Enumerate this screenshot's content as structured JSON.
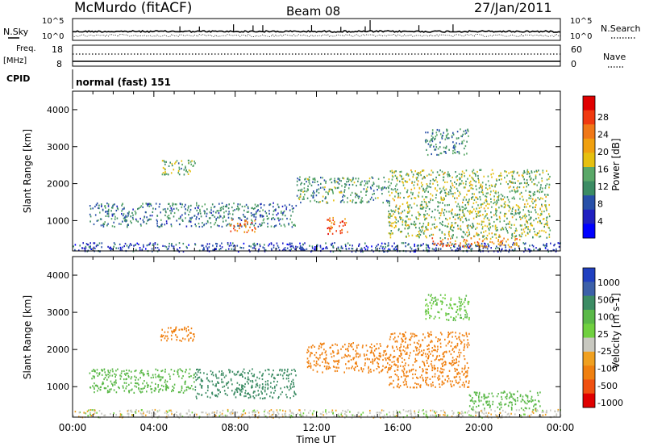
{
  "header": {
    "station": "McMurdo (fitACF)",
    "beam": "Beam 08",
    "date": "27/Jan/2011"
  },
  "nsky_panel": {
    "left_label": "N.Sky",
    "right_label": "N.Search",
    "tick_top_left": "10^5",
    "tick_bottom_left": "10^0",
    "tick_top_right": "10^5",
    "tick_bottom_right": "10^0"
  },
  "freq_panel": {
    "left_label_1": "Freq.",
    "left_label_2": "[MHz]",
    "right_label": "Nave",
    "left_ticks": [
      "18",
      "8"
    ],
    "right_ticks": [
      "60",
      "0"
    ]
  },
  "cpid_panel": {
    "label": "CPID",
    "mode": "normal (fast) 151"
  },
  "power_panel": {
    "ylabel": "Slant Range [km]",
    "yticks": [
      "1000",
      "2000",
      "3000",
      "4000"
    ],
    "colorbar_label": "Power [dB]",
    "colorbar_ticks": [
      "28",
      "24",
      "20",
      "16",
      "12",
      "8",
      "4"
    ],
    "colorbar_colors": [
      "#e00000",
      "#f03a10",
      "#f07818",
      "#f0a010",
      "#e6c010",
      "#5aa868",
      "#3c8c64",
      "#2850a8",
      "#2020c0",
      "#0000ff"
    ]
  },
  "velocity_panel": {
    "ylabel": "Slant Range [km]",
    "yticks": [
      "1000",
      "2000",
      "3000",
      "4000"
    ],
    "colorbar_label": "Velocity [m s-1]",
    "colorbar_ticks": [
      "1000",
      "500",
      "100",
      "25",
      "-25",
      "-100",
      "-500",
      "-1000"
    ],
    "colorbar_colors": [
      "#2040c0",
      "#3c60a8",
      "#3c8c64",
      "#5ab848",
      "#70d040",
      "#c8c8c0",
      "#f0a020",
      "#f08010",
      "#f05010",
      "#e00000"
    ]
  },
  "xaxis": {
    "label": "Time UT",
    "ticks": [
      "00:00",
      "04:00",
      "08:00",
      "12:00",
      "16:00",
      "20:00",
      "00:00"
    ]
  },
  "chart_data": [
    {
      "type": "heatmap",
      "name": "",
      "x_range_hours": [
        0,
        24
      ],
      "y_range_km": [
        180,
        4500
      ],
      "color_range_db": [
        0,
        30
      ],
      "echo_regions": [
        {
          "t0": 0.8,
          "t1": 11.0,
          "r0": 850,
          "r1": 1500,
          "level": 9
        },
        {
          "t0": 4.3,
          "t1": 6.0,
          "r0": 2250,
          "r1": 2650,
          "level": 13
        },
        {
          "t0": 7.7,
          "t1": 9.0,
          "r0": 700,
          "r1": 1050,
          "level": 24
        },
        {
          "t0": 12.5,
          "t1": 13.6,
          "r0": 650,
          "r1": 1100,
          "level": 25
        },
        {
          "t0": 11.0,
          "t1": 15.5,
          "r0": 1500,
          "r1": 2200,
          "level": 11
        },
        {
          "t0": 15.5,
          "t1": 23.5,
          "r0": 550,
          "r1": 2400,
          "level": 14
        },
        {
          "t0": 17.3,
          "t1": 19.5,
          "r0": 2800,
          "r1": 3500,
          "level": 10
        },
        {
          "t0": 0.0,
          "t1": 24.0,
          "r0": 180,
          "r1": 420,
          "level": 6
        },
        {
          "t0": 17.5,
          "t1": 22.0,
          "r0": 300,
          "r1": 550,
          "level": 22
        }
      ]
    },
    {
      "type": "heatmap",
      "name": "",
      "x_range_hours": [
        0,
        24
      ],
      "y_range_km": [
        180,
        4500
      ],
      "color_range_ms": [
        -1000,
        1000
      ],
      "echo_regions": [
        {
          "t0": 0.8,
          "t1": 6.0,
          "r0": 850,
          "r1": 1500,
          "v": 150
        },
        {
          "t0": 6.0,
          "t1": 11.0,
          "r0": 700,
          "r1": 1500,
          "v": 400
        },
        {
          "t0": 4.3,
          "t1": 6.0,
          "r0": 2250,
          "r1": 2650,
          "v": -150
        },
        {
          "t0": 11.5,
          "t1": 15.5,
          "r0": 1400,
          "r1": 2200,
          "v": -200
        },
        {
          "t0": 15.5,
          "t1": 19.5,
          "r0": 1000,
          "r1": 2500,
          "v": -250
        },
        {
          "t0": 19.5,
          "t1": 23.0,
          "r0": 400,
          "r1": 900,
          "v": 200
        },
        {
          "t0": 17.3,
          "t1": 19.5,
          "r0": 2800,
          "r1": 3500,
          "v": 100
        },
        {
          "t0": 0.0,
          "t1": 24.0,
          "r0": 180,
          "r1": 400,
          "v": 0
        }
      ]
    }
  ]
}
